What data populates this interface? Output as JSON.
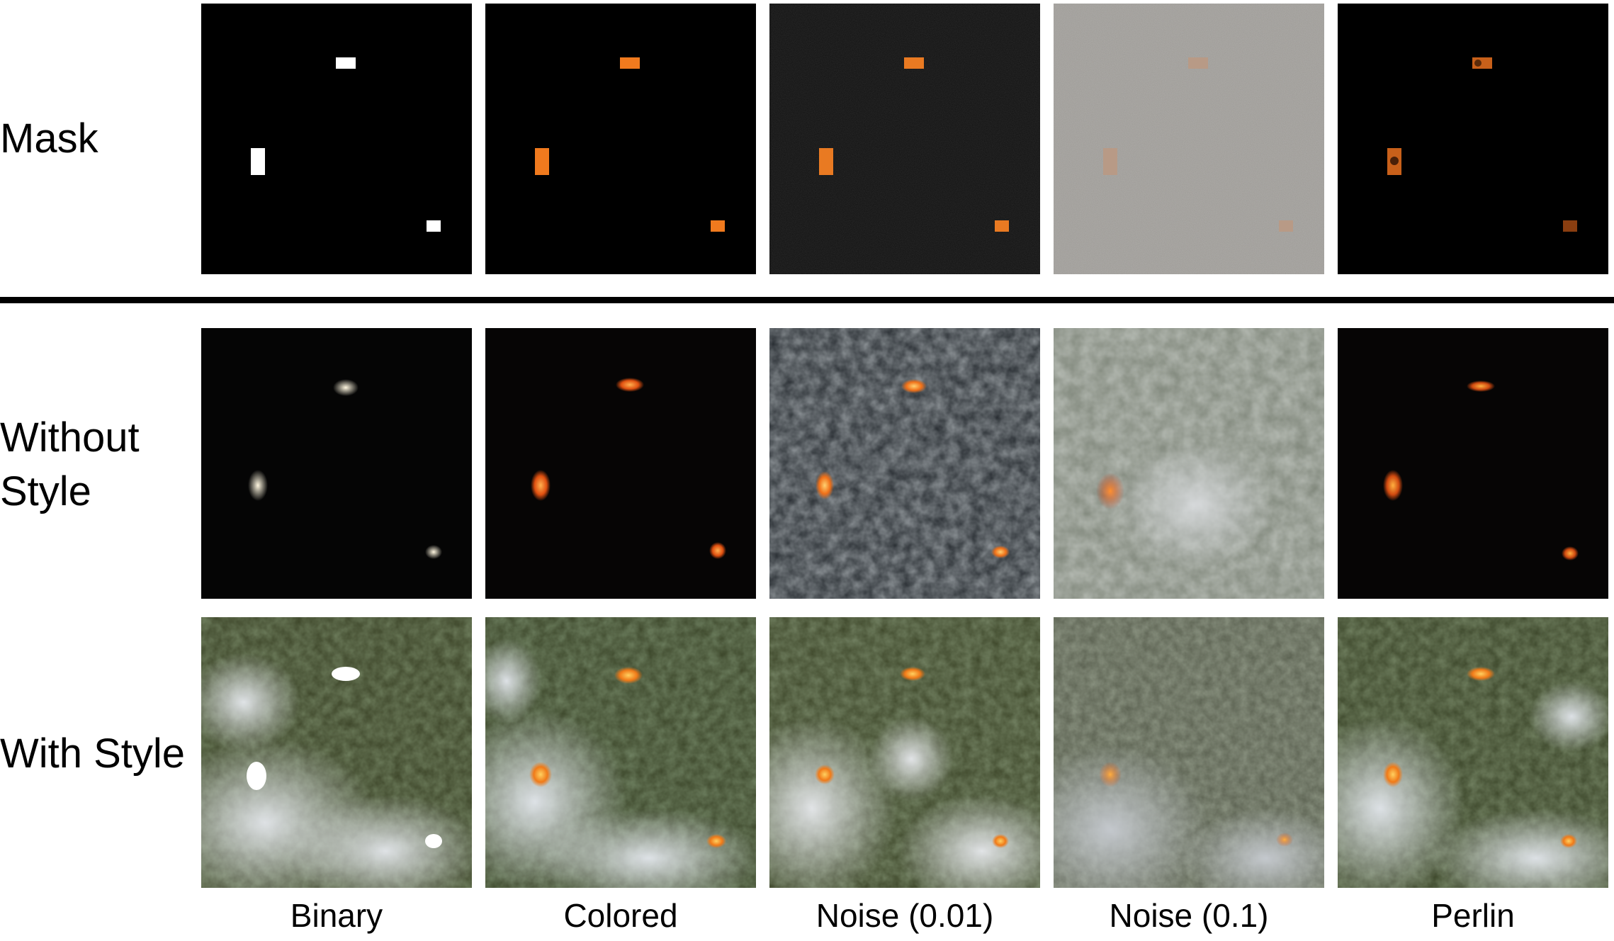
{
  "row_labels": {
    "mask": "Mask",
    "without_style_line1": "Without",
    "without_style_line2": "Style",
    "with_style": "With Style"
  },
  "column_labels": [
    "Binary",
    "Colored",
    "Noise (0.01)",
    "Noise (0.1)",
    "Perlin"
  ],
  "colors": {
    "divider": "#000000",
    "mask_background": "#000000",
    "mask_binary_patch": "#ffffff",
    "mask_colored_patch": "#f07a1e",
    "noise_low_background": "#121212",
    "noise_high_background": "#9b9893",
    "fire_orange": "#ff8a1a",
    "smoke": "#d9dde2",
    "forest": "#2e3a22"
  }
}
